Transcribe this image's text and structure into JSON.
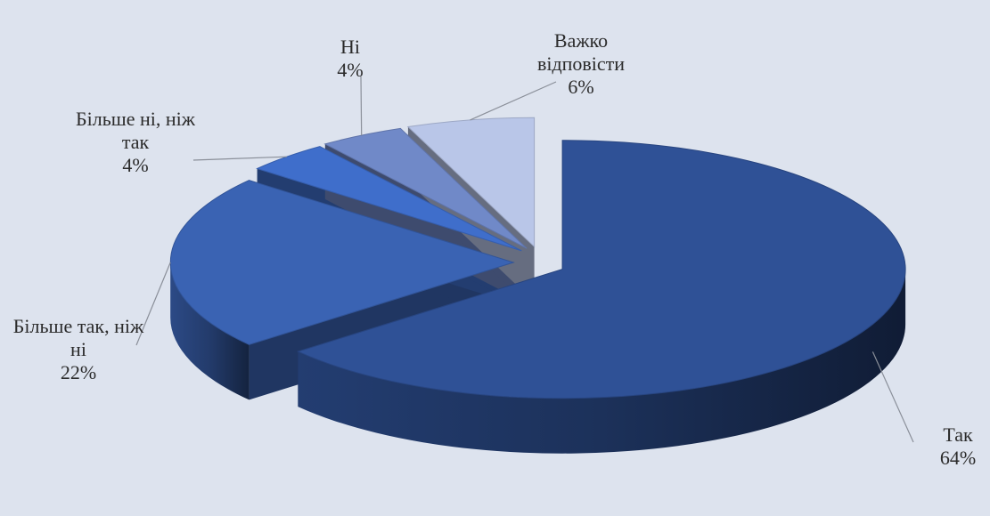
{
  "chart_data": {
    "type": "pie",
    "categories": [
      "Так",
      "Більше так, ніж ні",
      "Більше ні, ніж так",
      "Ні",
      "Важко відповісти"
    ],
    "values": [
      64,
      22,
      4,
      4,
      6
    ],
    "value_labels": [
      "64%",
      "22%",
      "4%",
      "4%",
      "6%"
    ],
    "colors": [
      "#2f5196",
      "#3a63b3",
      "#3f6ecb",
      "#7089c8",
      "#b9c6e8"
    ]
  }
}
